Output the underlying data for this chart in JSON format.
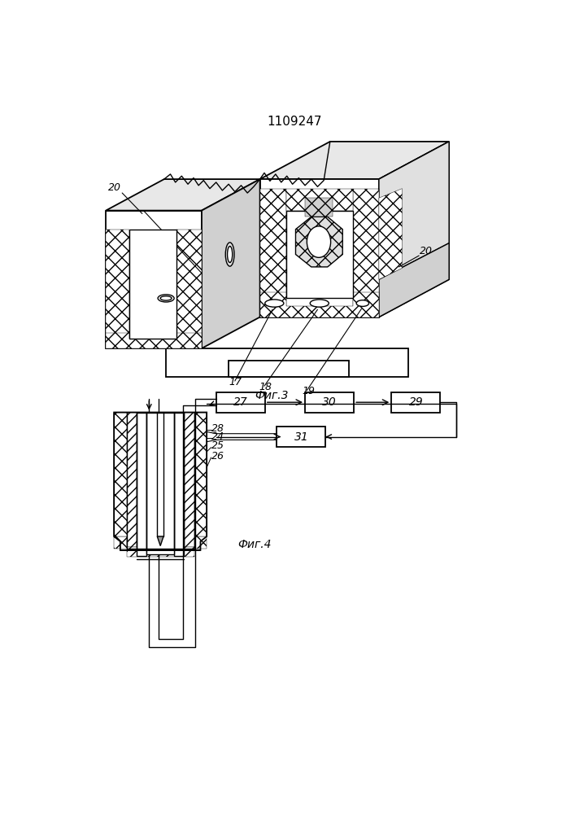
{
  "title": "1109247",
  "fig3_caption": "Фиг.3",
  "fig4_caption": "Фиг.4",
  "bg_color": "#ffffff",
  "line_color": "#000000"
}
